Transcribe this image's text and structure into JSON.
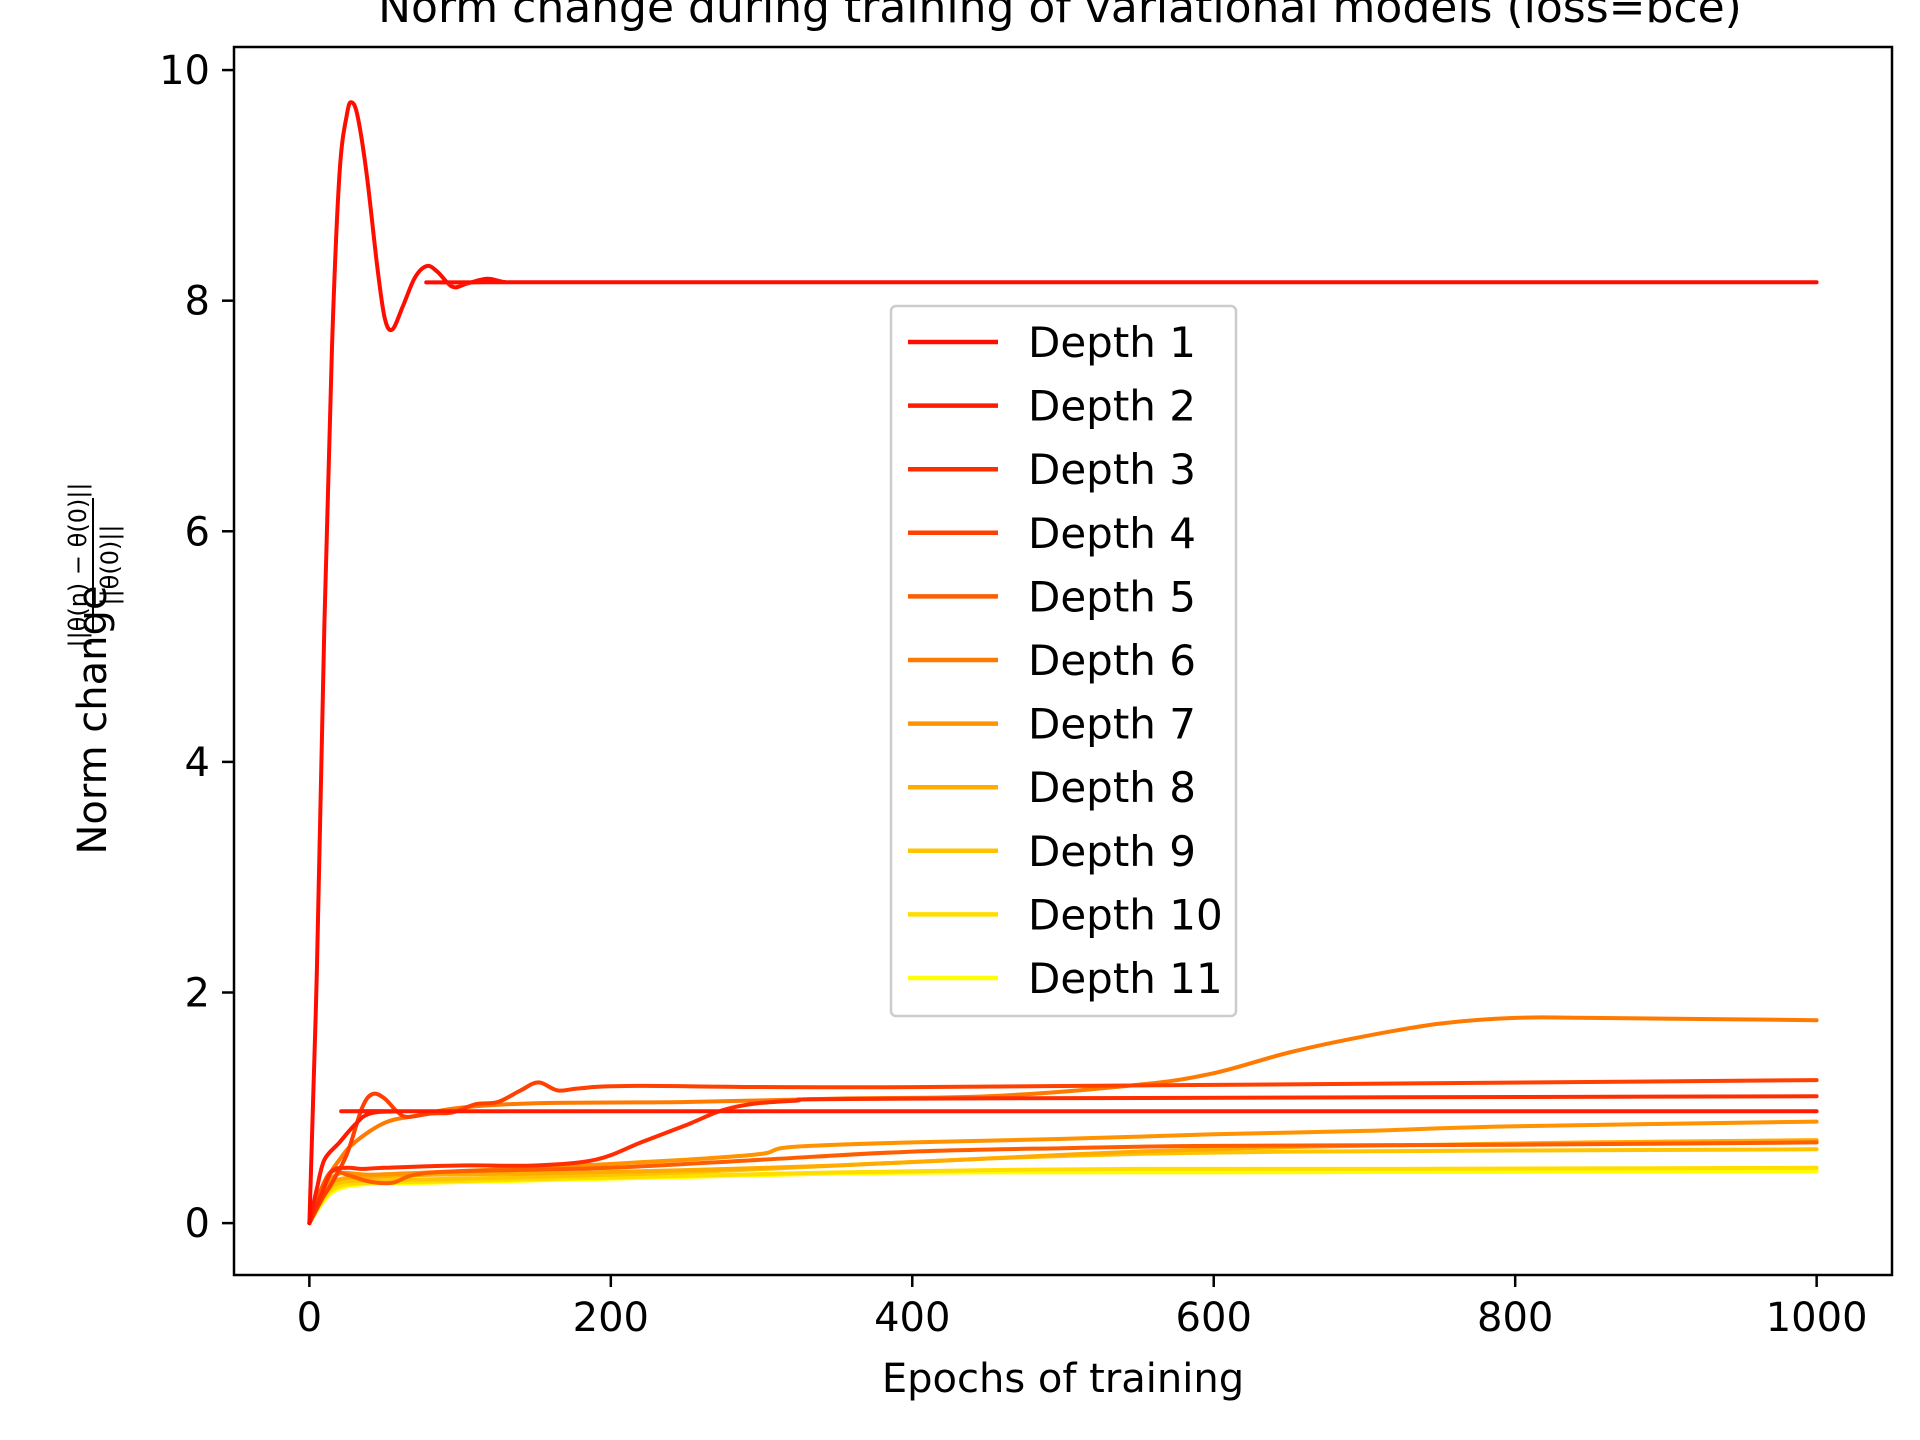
{
  "chart_data": {
    "type": "line",
    "title": "Norm change during training of variational models (loss=bce)",
    "xlabel": "Epochs of training",
    "ylabel_prefix": "Norm change",
    "ylabel_num": "||θ(n) − θ(0)||",
    "ylabel_den": "||θ(0)||",
    "xlim": [
      -50,
      1050
    ],
    "ylim": [
      -0.45,
      10.2
    ],
    "xticks": [
      0,
      200,
      400,
      600,
      800,
      1000
    ],
    "xtick_labels": [
      "0",
      "200",
      "400",
      "600",
      "800",
      "1000"
    ],
    "yticks": [
      0,
      2,
      4,
      6,
      8,
      10
    ],
    "ytick_labels": [
      "0",
      "2",
      "4",
      "6",
      "8",
      "10"
    ],
    "grid": false,
    "legend_position": "center",
    "series": [
      {
        "name": "Depth 1",
        "color": "#ff0d00",
        "points": [
          [
            0,
            0
          ],
          [
            5,
            2.2
          ],
          [
            10,
            5.2
          ],
          [
            15,
            7.6
          ],
          [
            20,
            9.1
          ],
          [
            25,
            9.62
          ],
          [
            28,
            9.72
          ],
          [
            32,
            9.6
          ],
          [
            38,
            9.1
          ],
          [
            45,
            8.3
          ],
          [
            50,
            7.85
          ],
          [
            55,
            7.75
          ],
          [
            62,
            7.95
          ],
          [
            70,
            8.2
          ],
          [
            78,
            8.3
          ],
          [
            85,
            8.25
          ],
          [
            95,
            8.12
          ],
          [
            105,
            8.15
          ],
          [
            118,
            8.19
          ],
          [
            130,
            8.16
          ],
          [
            145,
            8.16
          ],
          [
            1000,
            8.16
          ]
        ]
      },
      {
        "name": "Depth 2",
        "color": "#ff1c00",
        "points": [
          [
            0,
            0
          ],
          [
            5,
            0.3
          ],
          [
            10,
            0.55
          ],
          [
            20,
            0.7
          ],
          [
            30,
            0.85
          ],
          [
            40,
            0.95
          ],
          [
            60,
            0.97
          ],
          [
            100,
            0.97
          ],
          [
            1000,
            0.97
          ]
        ]
      },
      {
        "name": "Depth 3",
        "color": "#ff2d00",
        "points": [
          [
            0,
            0
          ],
          [
            8,
            0.25
          ],
          [
            15,
            0.45
          ],
          [
            25,
            0.48
          ],
          [
            35,
            0.47
          ],
          [
            50,
            0.48
          ],
          [
            100,
            0.5
          ],
          [
            150,
            0.5
          ],
          [
            190,
            0.55
          ],
          [
            220,
            0.7
          ],
          [
            250,
            0.85
          ],
          [
            280,
            1.0
          ],
          [
            320,
            1.06
          ],
          [
            400,
            1.08
          ],
          [
            1000,
            1.1
          ]
        ]
      },
      {
        "name": "Depth 4",
        "color": "#ff4000",
        "points": [
          [
            0,
            0
          ],
          [
            8,
            0.2
          ],
          [
            15,
            0.35
          ],
          [
            25,
            0.6
          ],
          [
            35,
            1.0
          ],
          [
            42,
            1.12
          ],
          [
            50,
            1.08
          ],
          [
            58,
            0.97
          ],
          [
            65,
            0.92
          ],
          [
            80,
            0.95
          ],
          [
            95,
            0.96
          ],
          [
            110,
            1.03
          ],
          [
            125,
            1.05
          ],
          [
            140,
            1.15
          ],
          [
            152,
            1.22
          ],
          [
            165,
            1.15
          ],
          [
            180,
            1.17
          ],
          [
            220,
            1.19
          ],
          [
            400,
            1.18
          ],
          [
            1000,
            1.24
          ]
        ]
      },
      {
        "name": "Depth 5",
        "color": "#ff5e00",
        "points": [
          [
            0,
            0
          ],
          [
            8,
            0.3
          ],
          [
            15,
            0.45
          ],
          [
            25,
            0.42
          ],
          [
            40,
            0.36
          ],
          [
            55,
            0.35
          ],
          [
            70,
            0.42
          ],
          [
            100,
            0.45
          ],
          [
            200,
            0.48
          ],
          [
            300,
            0.55
          ],
          [
            400,
            0.62
          ],
          [
            500,
            0.65
          ],
          [
            600,
            0.67
          ],
          [
            800,
            0.68
          ],
          [
            1000,
            0.7
          ]
        ]
      },
      {
        "name": "Depth 6",
        "color": "#ff7a00",
        "points": [
          [
            0,
            0
          ],
          [
            10,
            0.35
          ],
          [
            20,
            0.55
          ],
          [
            30,
            0.7
          ],
          [
            50,
            0.87
          ],
          [
            70,
            0.93
          ],
          [
            100,
            1.0
          ],
          [
            150,
            1.04
          ],
          [
            250,
            1.05
          ],
          [
            350,
            1.08
          ],
          [
            450,
            1.1
          ],
          [
            550,
            1.2
          ],
          [
            600,
            1.3
          ],
          [
            650,
            1.48
          ],
          [
            700,
            1.62
          ],
          [
            750,
            1.73
          ],
          [
            800,
            1.78
          ],
          [
            850,
            1.78
          ],
          [
            1000,
            1.76
          ]
        ]
      },
      {
        "name": "Depth 7",
        "color": "#ff9300",
        "points": [
          [
            0,
            0
          ],
          [
            10,
            0.3
          ],
          [
            20,
            0.43
          ],
          [
            40,
            0.42
          ],
          [
            80,
            0.44
          ],
          [
            150,
            0.48
          ],
          [
            250,
            0.55
          ],
          [
            300,
            0.6
          ],
          [
            320,
            0.66
          ],
          [
            400,
            0.7
          ],
          [
            500,
            0.73
          ],
          [
            600,
            0.77
          ],
          [
            700,
            0.8
          ],
          [
            800,
            0.84
          ],
          [
            1000,
            0.88
          ]
        ]
      },
      {
        "name": "Depth 8",
        "color": "#ffab00",
        "points": [
          [
            0,
            0
          ],
          [
            10,
            0.28
          ],
          [
            20,
            0.38
          ],
          [
            40,
            0.4
          ],
          [
            80,
            0.42
          ],
          [
            150,
            0.43
          ],
          [
            250,
            0.46
          ],
          [
            350,
            0.5
          ],
          [
            450,
            0.56
          ],
          [
            550,
            0.62
          ],
          [
            650,
            0.66
          ],
          [
            750,
            0.68
          ],
          [
            850,
            0.7
          ],
          [
            1000,
            0.72
          ]
        ]
      },
      {
        "name": "Depth 9",
        "color": "#ffc400",
        "points": [
          [
            0,
            0
          ],
          [
            10,
            0.25
          ],
          [
            20,
            0.35
          ],
          [
            40,
            0.37
          ],
          [
            80,
            0.38
          ],
          [
            150,
            0.4
          ],
          [
            250,
            0.44
          ],
          [
            350,
            0.5
          ],
          [
            450,
            0.56
          ],
          [
            550,
            0.6
          ],
          [
            650,
            0.62
          ],
          [
            800,
            0.63
          ],
          [
            1000,
            0.64
          ]
        ]
      },
      {
        "name": "Depth 10",
        "color": "#ffdd00",
        "points": [
          [
            0,
            0
          ],
          [
            10,
            0.22
          ],
          [
            20,
            0.32
          ],
          [
            40,
            0.35
          ],
          [
            80,
            0.36
          ],
          [
            150,
            0.38
          ],
          [
            250,
            0.41
          ],
          [
            350,
            0.44
          ],
          [
            450,
            0.46
          ],
          [
            550,
            0.47
          ],
          [
            700,
            0.47
          ],
          [
            1000,
            0.48
          ]
        ]
      },
      {
        "name": "Depth 11",
        "color": "#ffff00",
        "points": [
          [
            0,
            0
          ],
          [
            10,
            0.2
          ],
          [
            20,
            0.3
          ],
          [
            40,
            0.34
          ],
          [
            80,
            0.35
          ],
          [
            150,
            0.37
          ],
          [
            250,
            0.4
          ],
          [
            350,
            0.43
          ],
          [
            450,
            0.44
          ],
          [
            600,
            0.44
          ],
          [
            1000,
            0.45
          ]
        ]
      }
    ]
  }
}
